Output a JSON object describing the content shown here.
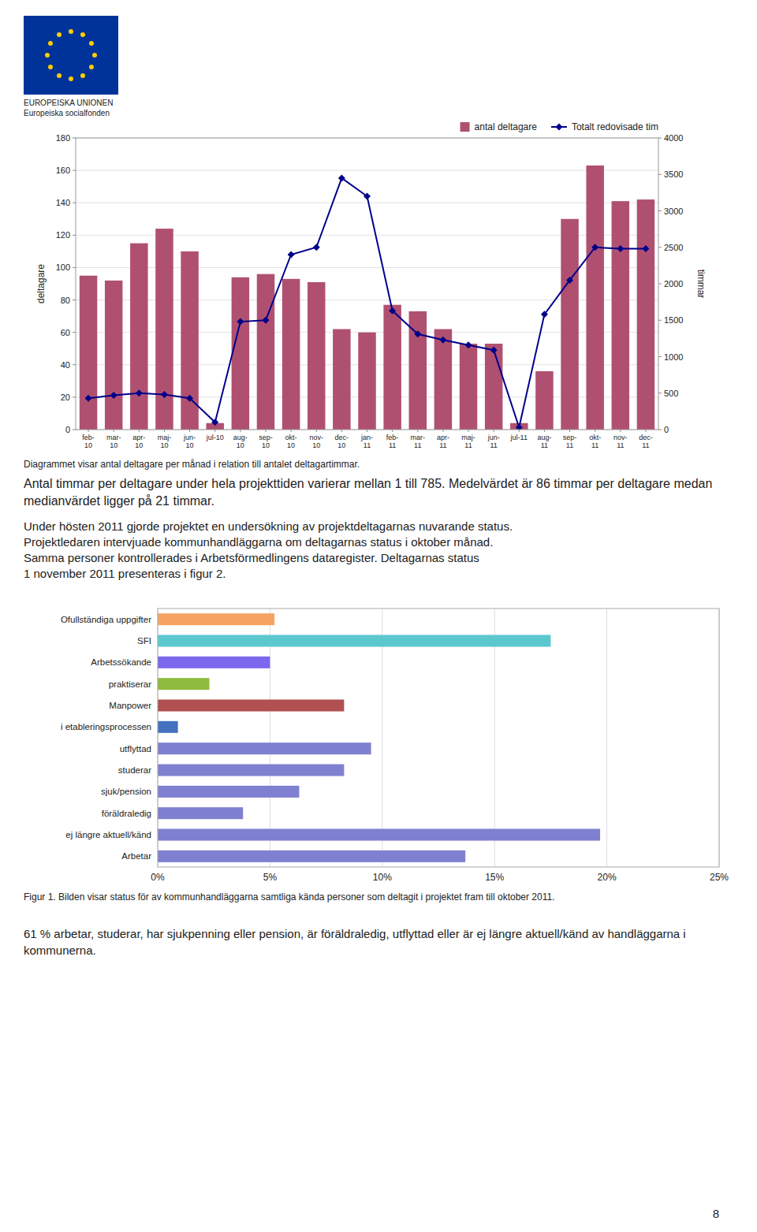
{
  "chart_data": [
    {
      "type": "bar",
      "categories": [
        "feb-\n10",
        "mar-\n10",
        "apr-\n10",
        "maj-\n10",
        "jun-\n10",
        "jul-10",
        "aug-\n10",
        "sep-\n10",
        "okt-\n10",
        "nov-\n10",
        "dec-\n10",
        "jan-\n11",
        "feb-\n11",
        "mar-\n11",
        "apr-\n11",
        "maj-\n11",
        "jun-\n11",
        "jul-11",
        "aug-\n11",
        "sep-\n11",
        "okt-\n11",
        "nov-\n11",
        "dec-\n11"
      ],
      "series": [
        {
          "name": "antal deltagare",
          "type": "bar",
          "color": "#b05070",
          "values": [
            95,
            92,
            115,
            124,
            110,
            4,
            94,
            96,
            93,
            91,
            62,
            60,
            77,
            73,
            62,
            53,
            53,
            4,
            36,
            130,
            163,
            141,
            142
          ]
        },
        {
          "name": "Totalt redovisade tim",
          "type": "line",
          "axis": "y2",
          "color": "#00008b",
          "marker": "diamond",
          "values": [
            430,
            470,
            500,
            480,
            430,
            100,
            1480,
            1500,
            2400,
            2500,
            3450,
            3200,
            1630,
            1310,
            1230,
            1160,
            1090,
            30,
            1580,
            2050,
            2500,
            2480,
            2480
          ]
        }
      ],
      "ylabel": "deltagare",
      "y2label": "timmar",
      "ylim": [
        0,
        180
      ],
      "yticks": [
        0,
        20,
        40,
        60,
        80,
        100,
        120,
        140,
        160,
        180
      ],
      "y2lim": [
        0,
        4000
      ],
      "y2ticks": [
        0,
        500,
        1000,
        1500,
        2000,
        2500,
        3000,
        3500,
        4000
      ],
      "grid": true,
      "legend": "upper right",
      "annotations": [
        "EUROPEISKA UNIONEN",
        "Europeiska socialfonden",
        "Diagrammet visar antal deltagare per månad i relation till antalet deltagartimmar.",
        "Antal timmar per deltagare under hela projekttiden varierar mellan 1 till 785. Medelvärdet är 86 timmar per deltagare medan medianvärdet ligger på 21 timmar.",
        "Under hösten 2011 gjorde projektet en undersökning av projektdeltagarnas nuvarande status.",
        "Projektledaren intervjuade kommunhandläggarna om deltagarnas status i oktober månad.",
        "Samma personer kontrollerades i Arbetsförmedlingens dataregister. Deltagarnas status",
        "1 november 2011 presenteras i figur 2."
      ]
    },
    {
      "type": "bar",
      "orientation": "horizontal",
      "categories": [
        "Ofullständiga uppgifter",
        "SFI",
        "Arbetssökande",
        "praktiserar",
        "Manpower",
        "i etableringsprocessen",
        "utflyttad",
        "studerar",
        "sjuk/pension",
        "föräldraledig",
        "ej längre aktuell/känd",
        "Arbetar"
      ],
      "values": [
        5.2,
        17.5,
        5.0,
        2.3,
        8.3,
        0.9,
        9.5,
        8.3,
        6.3,
        3.8,
        19.7,
        13.7
      ],
      "colors": [
        "#f4a460",
        "#5bc8d0",
        "#7b68ee",
        "#8fbc3f",
        "#b05050",
        "#4472c0",
        "#8080d0",
        "#8080d0",
        "#8080d0",
        "#8080d0",
        "#8080d0",
        "#8080d0"
      ],
      "xlim": [
        0,
        25
      ],
      "xticks": [
        {
          "value": 0,
          "label": "0%"
        },
        {
          "value": 5,
          "label": "5%"
        },
        {
          "value": 10,
          "label": "10%"
        },
        {
          "value": 15,
          "label": "15%"
        },
        {
          "value": 20,
          "label": "20%"
        },
        {
          "value": 25,
          "label": "25%"
        }
      ],
      "grid": true,
      "annotations": [
        "Figur 1. Bilden visar status för av kommunhandläggarna samtliga kända personer som deltagit i projektet fram till oktober 2011.",
        "61 % arbetar, studerar, har sjukpenning eller pension, är föräldraledig, utflyttad eller är ej längre aktuell/känd av handläggarna i kommunerna.",
        "8"
      ]
    }
  ]
}
